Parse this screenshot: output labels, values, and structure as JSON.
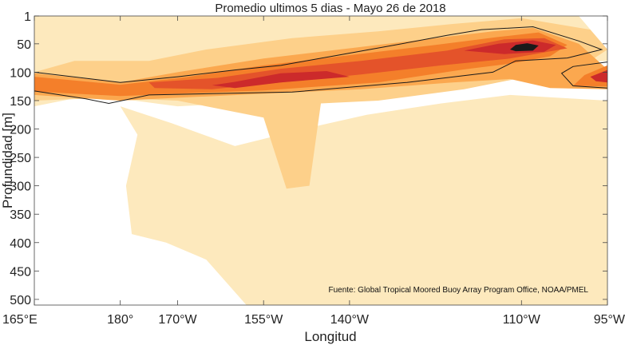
{
  "chart_data": {
    "type": "heatmap",
    "title": "Promedio ultimos 5 dias - Mayo 26 de 2018",
    "xlabel": "Longitud",
    "ylabel": "Profundidad [m]",
    "source": "Fuente: Global Tropical Moored Buoy Array Program Office, NOAA/PMEL",
    "x_ticks": [
      {
        "value": 165,
        "label": "165°E"
      },
      {
        "value": 180,
        "label": "180°"
      },
      {
        "value": 190,
        "label": "170°W"
      },
      {
        "value": 205,
        "label": "155°W"
      },
      {
        "value": 220,
        "label": "140°W"
      },
      {
        "value": 250,
        "label": "110°W"
      },
      {
        "value": 265,
        "label": "95°W"
      }
    ],
    "y_ticks": [
      1,
      50,
      100,
      150,
      200,
      250,
      300,
      350,
      400,
      450,
      500
    ],
    "xlim": [
      165,
      265
    ],
    "ylim": [
      1,
      510
    ],
    "color_levels": [
      "#fdf4dc",
      "#fde9bd",
      "#fdd08a",
      "#fba84f",
      "#f47f2a",
      "#e4532a",
      "#cc2a2b",
      "#1a1a1a"
    ],
    "regions": [
      {
        "level": 1,
        "points": [
          [
            180,
            160
          ],
          [
            189,
            190
          ],
          [
            200,
            230
          ],
          [
            212,
            200
          ],
          [
            223,
            175
          ],
          [
            236,
            155
          ],
          [
            248,
            140
          ],
          [
            265,
            150
          ],
          [
            265,
            510
          ],
          [
            202,
            510
          ],
          [
            195,
            430
          ],
          [
            188,
            400
          ],
          [
            182,
            385
          ],
          [
            181,
            300
          ],
          [
            183,
            210
          ]
        ]
      },
      {
        "level": 1,
        "points": [
          [
            165,
            1
          ],
          [
            260,
            1
          ],
          [
            265,
            60
          ],
          [
            265,
            80
          ],
          [
            240,
            90
          ],
          [
            225,
            130
          ],
          [
            210,
            150
          ],
          [
            190,
            160
          ],
          [
            175,
            140
          ],
          [
            165,
            160
          ]
        ]
      },
      {
        "level": 2,
        "points": [
          [
            165,
            100
          ],
          [
            172,
            80
          ],
          [
            185,
            80
          ],
          [
            195,
            60
          ],
          [
            210,
            40
          ],
          [
            225,
            28
          ],
          [
            238,
            15
          ],
          [
            250,
            5
          ],
          [
            262,
            25
          ],
          [
            265,
            60
          ],
          [
            262,
            80
          ],
          [
            255,
            100
          ],
          [
            240,
            130
          ],
          [
            225,
            150
          ],
          [
            215,
            155
          ],
          [
            213,
            300
          ],
          [
            209,
            305
          ],
          [
            205,
            180
          ],
          [
            190,
            150
          ],
          [
            178,
            145
          ],
          [
            165,
            150
          ]
        ]
      },
      {
        "level": 3,
        "points": [
          [
            165,
            102
          ],
          [
            180,
            118
          ],
          [
            190,
            100
          ],
          [
            205,
            76
          ],
          [
            220,
            58
          ],
          [
            235,
            40
          ],
          [
            245,
            28
          ],
          [
            252,
            22
          ],
          [
            260,
            50
          ],
          [
            265,
            95
          ],
          [
            265,
            130
          ],
          [
            255,
            128
          ],
          [
            248,
            112
          ],
          [
            238,
            118
          ],
          [
            222,
            130
          ],
          [
            205,
            138
          ],
          [
            190,
            145
          ],
          [
            180,
            150
          ],
          [
            165,
            140
          ]
        ]
      },
      {
        "level": 4,
        "points": [
          [
            165,
            108
          ],
          [
            180,
            122
          ],
          [
            192,
            108
          ],
          [
            205,
            88
          ],
          [
            220,
            70
          ],
          [
            235,
            52
          ],
          [
            246,
            38
          ],
          [
            253,
            30
          ],
          [
            258,
            52
          ],
          [
            255,
            72
          ],
          [
            248,
            85
          ],
          [
            240,
            95
          ],
          [
            225,
            118
          ],
          [
            205,
            132
          ],
          [
            190,
            138
          ],
          [
            180,
            142
          ],
          [
            165,
            134
          ]
        ]
      },
      {
        "level": 4,
        "points": [
          [
            261,
            105
          ],
          [
            265,
            88
          ],
          [
            265,
            125
          ],
          [
            259,
            124
          ]
        ]
      },
      {
        "level": 5,
        "points": [
          [
            185,
            118
          ],
          [
            197,
            110
          ],
          [
            208,
            94
          ],
          [
            222,
            80
          ],
          [
            237,
            62
          ],
          [
            247,
            42
          ],
          [
            254,
            40
          ],
          [
            258,
            58
          ],
          [
            248,
            76
          ],
          [
            236,
            88
          ],
          [
            222,
            104
          ],
          [
            208,
            118
          ],
          [
            196,
            130
          ],
          [
            186,
            128
          ]
        ]
      },
      {
        "level": 6,
        "points": [
          [
            196,
            123
          ],
          [
            200,
            117
          ],
          [
            208,
            102
          ],
          [
            216,
            98
          ],
          [
            220,
            108
          ],
          [
            208,
            118
          ],
          [
            200,
            128
          ]
        ]
      },
      {
        "level": 6,
        "points": [
          [
            240,
            62
          ],
          [
            246,
            50
          ],
          [
            252,
            44
          ],
          [
            256,
            52
          ],
          [
            254,
            64
          ],
          [
            247,
            68
          ]
        ]
      },
      {
        "level": 6,
        "points": [
          [
            262,
            108
          ],
          [
            265,
            96
          ],
          [
            265,
            118
          ],
          [
            263,
            116
          ]
        ]
      },
      {
        "level": 7,
        "points": [
          [
            248,
            60
          ],
          [
            249,
            52
          ],
          [
            251,
            49
          ],
          [
            253,
            53
          ],
          [
            252,
            62
          ],
          [
            249,
            63
          ]
        ]
      }
    ],
    "contour_lines": [
      [
        [
          165,
          100
        ],
        [
          180,
          118
        ],
        [
          190,
          108
        ],
        [
          200,
          96
        ],
        [
          208,
          88
        ],
        [
          218,
          70
        ],
        [
          228,
          52
        ],
        [
          237,
          35
        ],
        [
          243,
          25
        ],
        [
          252,
          20
        ],
        [
          260,
          45
        ],
        [
          264,
          60
        ],
        [
          258,
          75
        ],
        [
          249,
          80
        ],
        [
          245,
          100
        ],
        [
          230,
          118
        ],
        [
          210,
          135
        ],
        [
          195,
          138
        ],
        [
          185,
          140
        ],
        [
          178,
          155
        ],
        [
          174,
          147
        ],
        [
          165,
          133
        ]
      ],
      [
        [
          265,
          82
        ],
        [
          259,
          90
        ],
        [
          257,
          102
        ],
        [
          259,
          124
        ],
        [
          265,
          128
        ]
      ]
    ]
  }
}
